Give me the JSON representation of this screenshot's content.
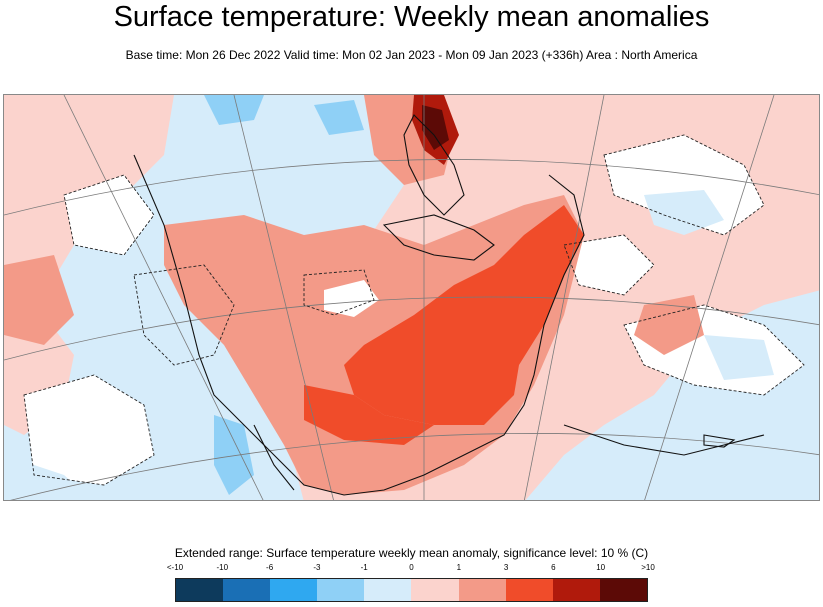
{
  "header": {
    "title": "Surface temperature: Weekly mean anomalies",
    "subtitle": "Base time: Mon 26 Dec 2022 Valid time: Mon 02 Jan 2023 - Mon 09 Jan 2023 (+336h) Area : North America"
  },
  "legend": {
    "title": "Extended range: Surface temperature weekly mean anomaly, significance level: 10 % (C)",
    "ticks": [
      "<-10",
      "-10",
      "-6",
      "-3",
      "-1",
      "0",
      "1",
      "3",
      "6",
      "10",
      ">10"
    ],
    "colors": [
      "#0d3a5c",
      "#1a6fb5",
      "#2fa8f0",
      "#8fd0f6",
      "#d6ecfa",
      "#fbd3cd",
      "#f39a88",
      "#f04c2a",
      "#b01a0c",
      "#5c0a06"
    ]
  },
  "map": {
    "land_outline_color": "#111111",
    "graticule_color": "#7a7a7a"
  }
}
